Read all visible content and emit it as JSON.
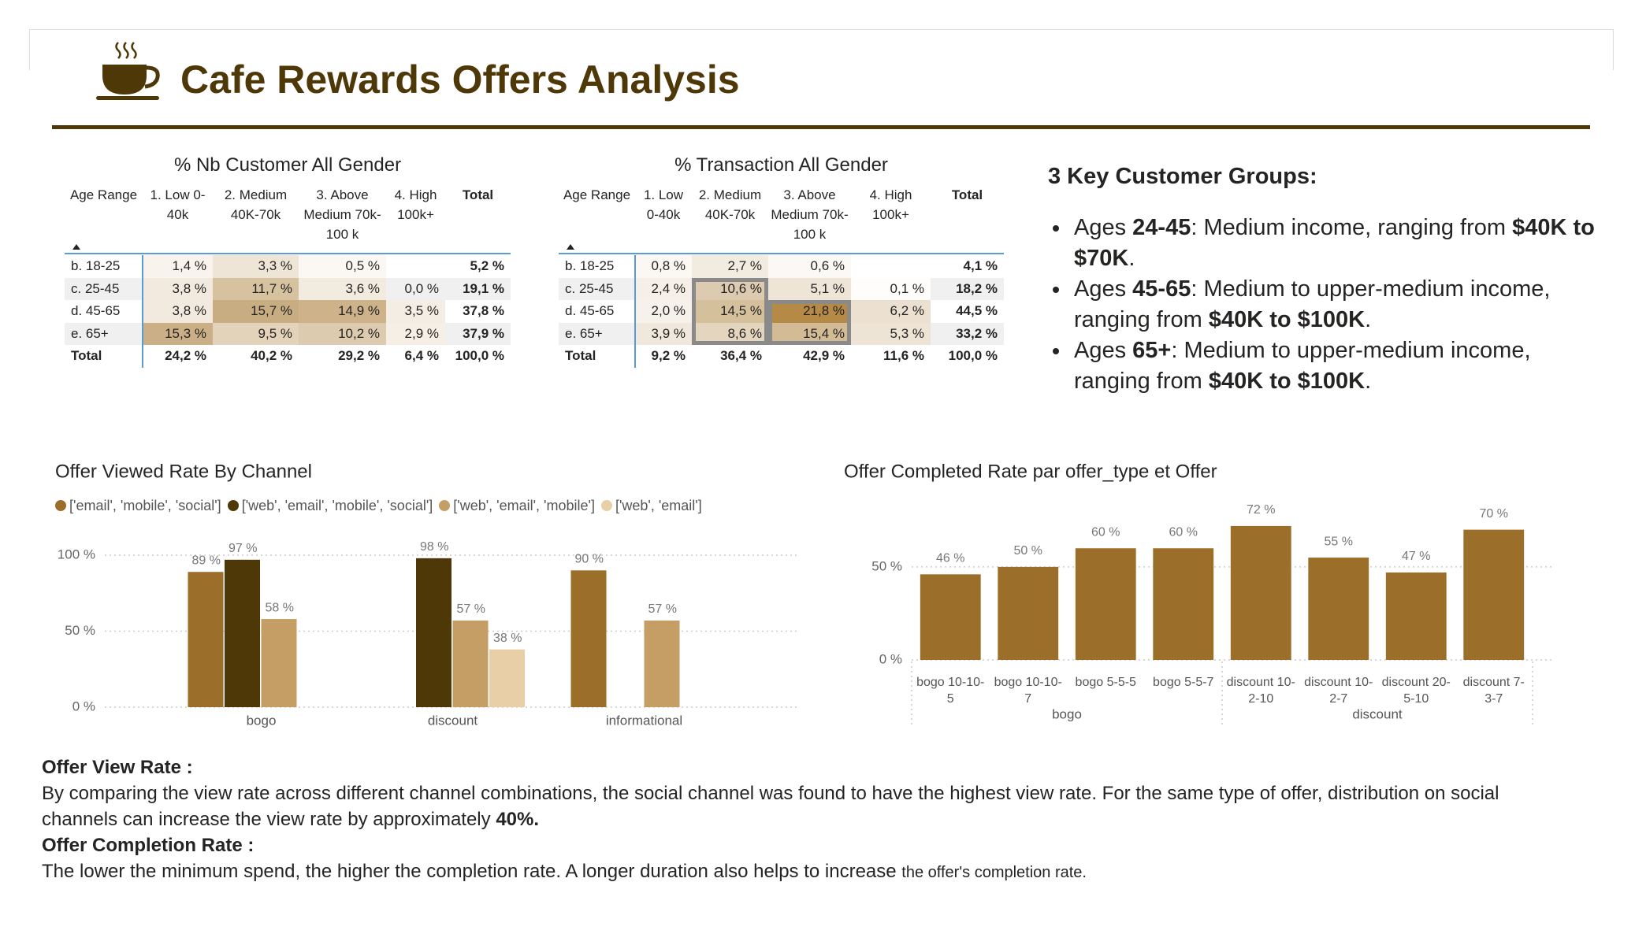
{
  "header": {
    "title": "Cafe Rewards Offers Analysis"
  },
  "tables": [
    {
      "title": "% Nb Customer All Gender",
      "columns": [
        "Age Range",
        "1. Low 0-40k",
        "2. Medium 40K-70k",
        "3. Above Medium 70k-100 k",
        "4. High 100k+",
        "Total"
      ],
      "rows": [
        {
          "label": "b. 18-25",
          "cells": [
            "1,4 %",
            "3,3 %",
            "0,5 %",
            null,
            "5,2 %"
          ],
          "colors": [
            "#f8f3ec",
            "#efe5d6",
            "#fbf8f3",
            null
          ]
        },
        {
          "label": "c. 25-45",
          "cells": [
            "3,8 %",
            "11,7 %",
            "3,6 %",
            "0,0 %",
            "19,1 %"
          ],
          "colors": [
            "#f2eadf",
            "#d7c2a0",
            "#f2ebe0",
            null
          ]
        },
        {
          "label": "d. 45-65",
          "cells": [
            "3,8 %",
            "15,7 %",
            "14,9 %",
            "3,5 %",
            "37,8 %"
          ],
          "colors": [
            "#f2eadf",
            "#c9ad82",
            "#cdb28a",
            "#f3ede3"
          ]
        },
        {
          "label": "e. 65+",
          "cells": [
            "15,3 %",
            "9,5 %",
            "10,2 %",
            "2,9 %",
            "37,9 %"
          ],
          "colors": [
            "#cbb087",
            "#e2d3ba",
            "#ddcbaf",
            "#f5efe6"
          ]
        }
      ],
      "total": {
        "label": "Total",
        "cells": [
          "24,2 %",
          "40,2 %",
          "29,2 %",
          "6,4 %",
          "100,0 %"
        ]
      }
    },
    {
      "title": "% Transaction All Gender",
      "columns": [
        "Age Range",
        "1. Low 0-40k",
        "2. Medium 40K-70k",
        "3. Above Medium 70k-100 k",
        "4. High 100k+",
        "Total"
      ],
      "rows": [
        {
          "label": "b. 18-25",
          "cells": [
            "0,8 %",
            "2,7 %",
            "0,6 %",
            null,
            "4,1 %"
          ],
          "colors": [
            "#fbf8f4",
            "#f2ebe0",
            "#fbf9f5",
            null
          ]
        },
        {
          "label": "c. 25-45",
          "cells": [
            "2,4 %",
            "10,6 %",
            "5,1 %",
            "0,1 %",
            "18,2 %"
          ],
          "colors": [
            "#f5efe7",
            "#dccbb0",
            "#efe5d6",
            "#fefdfb"
          ]
        },
        {
          "label": "d. 45-65",
          "cells": [
            "2,0 %",
            "14,5 %",
            "21,8 %",
            "6,2 %",
            "44,5 %"
          ],
          "colors": [
            "#f6f1ea",
            "#d5c09c",
            "#b58a47",
            "#ece1d0"
          ]
        },
        {
          "label": "e. 65+",
          "cells": [
            "3,9 %",
            "8,6 %",
            "15,4 %",
            "5,3 %",
            "33,2 %"
          ],
          "colors": [
            "#f0e8dc",
            "#e3d5be",
            "#d2bb95",
            "#eee4d5"
          ]
        }
      ],
      "total": {
        "label": "Total",
        "cells": [
          "9,2 %",
          "36,4 %",
          "42,9 %",
          "11,6 %",
          "100,0 %"
        ]
      }
    }
  ],
  "key_groups": {
    "title": "3 Key Customer Groups:",
    "items": [
      [
        {
          "text": "Ages "
        },
        {
          "text": "24-45",
          "bold": true
        },
        {
          "text": ": Medium income, ranging from "
        },
        {
          "text": "$40K to $70K",
          "bold": true
        },
        {
          "text": "."
        }
      ],
      [
        {
          "text": "Ages "
        },
        {
          "text": "45-65",
          "bold": true
        },
        {
          "text": ": Medium to upper-medium income, ranging from "
        },
        {
          "text": "$40K to $100K",
          "bold": true
        },
        {
          "text": "."
        }
      ],
      [
        {
          "text": "Ages "
        },
        {
          "text": "65+",
          "bold": true
        },
        {
          "text": ": Medium to upper-medium income, ranging from "
        },
        {
          "text": "$40K to $100K",
          "bold": true
        },
        {
          "text": "."
        }
      ]
    ]
  },
  "chart_data": [
    {
      "type": "bar",
      "title": "Offer Viewed Rate By Channel",
      "categories": [
        "bogo",
        "discount",
        "informational"
      ],
      "series": [
        {
          "name": "['email', 'mobile', 'social']",
          "color": "#9b6f2a",
          "values": [
            89,
            null,
            90
          ],
          "value_labels": [
            "89 %",
            null,
            "90 %"
          ]
        },
        {
          "name": "['web', 'email', 'mobile', 'social']",
          "color": "#4f3808",
          "values": [
            97,
            98,
            null
          ],
          "value_labels": [
            "97 %",
            "98 %",
            null
          ]
        },
        {
          "name": "['web', 'email', 'mobile']",
          "color": "#c49e64",
          "values": [
            58,
            57,
            57
          ],
          "value_labels": [
            "58 %",
            "57 %",
            "57 %"
          ]
        },
        {
          "name": "['web', 'email']",
          "color": "#e8cfa8",
          "values": [
            null,
            38,
            null
          ],
          "value_labels": [
            null,
            "38 %",
            null
          ]
        }
      ],
      "ylim": [
        0,
        100
      ],
      "yticks": [
        {
          "value": 0,
          "label": "0 %"
        },
        {
          "value": 50,
          "label": "50 %"
        },
        {
          "value": 100,
          "label": "100 %"
        }
      ],
      "grid": true,
      "legend": "top"
    },
    {
      "type": "bar",
      "title": "Offer Completed Rate par offer_type et Offer",
      "color": "#9b6f2a",
      "groups": [
        {
          "name": "bogo",
          "categories": [
            "bogo 10-10-5",
            "bogo 10-10-7",
            "bogo 5-5-5",
            "bogo 5-5-7"
          ],
          "values": [
            46,
            50,
            60,
            60
          ],
          "value_labels": [
            "46 %",
            "50 %",
            "60 %",
            "60 %"
          ]
        },
        {
          "name": "discount",
          "categories": [
            "discount 10-2-10",
            "discount 10-2-7",
            "discount 20-5-10",
            "discount 7-3-7"
          ],
          "values": [
            72,
            55,
            47,
            70
          ],
          "value_labels": [
            "72 %",
            "55 %",
            "47 %",
            "70 %"
          ]
        }
      ],
      "ylim": [
        0,
        80
      ],
      "yticks": [
        {
          "value": 0,
          "label": "0 %"
        },
        {
          "value": 50,
          "label": "50 %"
        }
      ],
      "grid": true
    }
  ],
  "notes": [
    {
      "heading": "Offer View Rate :",
      "body": [
        {
          "text": "By comparing the view rate across different channel combinations, the social channel was found to have the highest view rate. For the same type of offer, distribution on social channels can increase the view rate by approximately "
        },
        {
          "text": "40%.",
          "bold": true
        }
      ]
    },
    {
      "heading": "Offer Completion Rate :",
      "body": [
        {
          "text": "The lower the minimum spend, the higher the completion rate. A longer duration also helps to increase "
        },
        {
          "text": "the offer's completion rate.",
          "small": true
        }
      ]
    }
  ]
}
